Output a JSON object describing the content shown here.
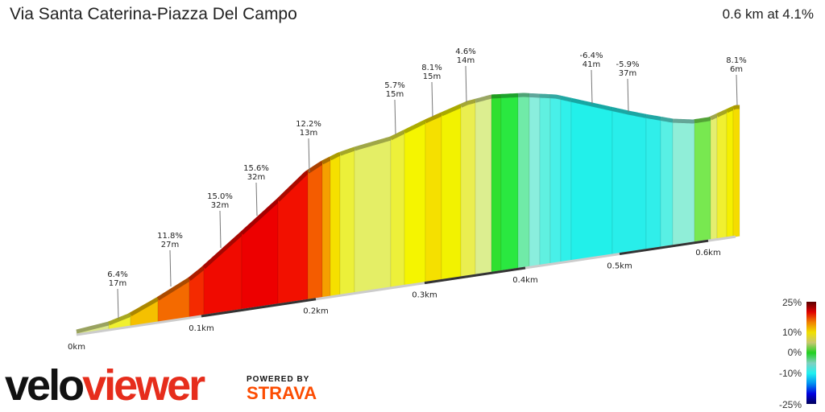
{
  "header": {
    "title": "Via Santa Caterina-Piazza Del Campo",
    "summary": "0.6 km at 4.1%"
  },
  "chart_data": {
    "type": "area",
    "title": "Via Santa Caterina-Piazza Del Campo",
    "x_ticks": [
      "0km",
      "0.1km",
      "0.2km",
      "0.3km",
      "0.4km",
      "0.5km",
      "0.6km"
    ],
    "annotations": [
      {
        "gradient": "6.4%",
        "length": "17m"
      },
      {
        "gradient": "11.8%",
        "length": "27m"
      },
      {
        "gradient": "15.0%",
        "length": "32m"
      },
      {
        "gradient": "15.6%",
        "length": "32m"
      },
      {
        "gradient": "12.2%",
        "length": "13m"
      },
      {
        "gradient": "5.7%",
        "length": "15m"
      },
      {
        "gradient": "8.1%",
        "length": "15m"
      },
      {
        "gradient": "4.6%",
        "length": "14m"
      },
      {
        "gradient": "-6.4%",
        "length": "41m"
      },
      {
        "gradient": "-5.9%",
        "length": "37m"
      },
      {
        "gradient": "8.1%",
        "length": "6m"
      }
    ],
    "segment_colors": [
      "#dce88a",
      "#f0f030",
      "#f5c000",
      "#f46a00",
      "#f42a00",
      "#f00a00",
      "#ed0000",
      "#f21000",
      "#f45c00",
      "#f5a000",
      "#f5e000",
      "#ecf03a",
      "#e4ee66",
      "#edf03a",
      "#f5f500",
      "#f5e000",
      "#f2f200",
      "#eaee50",
      "#dcee90",
      "#30e030",
      "#2ae840",
      "#70eaa8",
      "#8aeedd",
      "#60f0e0",
      "#48f0e8",
      "#30f0ea",
      "#22f0ea",
      "#28eeea",
      "#30eeea",
      "#58f0e4",
      "#90eed8",
      "#78e850",
      "#e4ee70",
      "#f0f030",
      "#f5f000",
      "#f5dc00"
    ],
    "legend": {
      "labels": [
        "25%",
        "10%",
        "0%",
        "-10%",
        "-25%"
      ],
      "colors": [
        "#5a0000",
        "#e00000",
        "#f08000",
        "#f0e000",
        "#c8c870",
        "#20d020",
        "#80d0c0",
        "#20f0f0",
        "#0090f0",
        "#0000e0",
        "#00005a"
      ]
    }
  },
  "branding": {
    "logo_part1": "velo",
    "logo_part2": "viewer",
    "powered_by": "POWERED BY",
    "strava": "STRAVA"
  }
}
